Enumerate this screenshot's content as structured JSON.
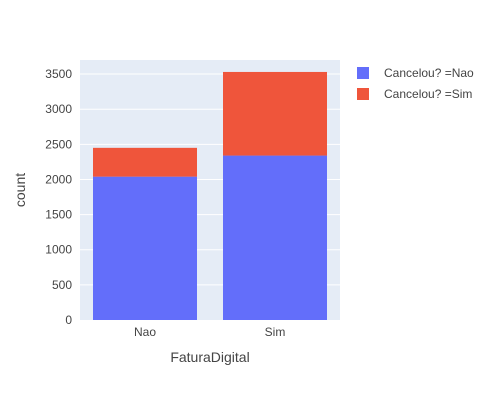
{
  "chart_data": {
    "type": "bar",
    "barmode": "stack",
    "xlabel": "FaturaDigital",
    "ylabel": "count",
    "categories": [
      "Nao",
      "Sim"
    ],
    "ylim": [
      0,
      3700
    ],
    "yticks": [
      0,
      500,
      1000,
      1500,
      2000,
      2500,
      3000,
      3500
    ],
    "grid": true,
    "legend_position": "top-right",
    "series": [
      {
        "name": "Cancelou? =Nao",
        "values": [
          2040,
          2340
        ],
        "color": "#636efa"
      },
      {
        "name": "Cancelou? =Sim",
        "values": [
          410,
          1190
        ],
        "color": "#ef553b"
      }
    ]
  },
  "colors": {
    "plot_bg": "#e5ecf6",
    "grid": "#ffffff"
  }
}
